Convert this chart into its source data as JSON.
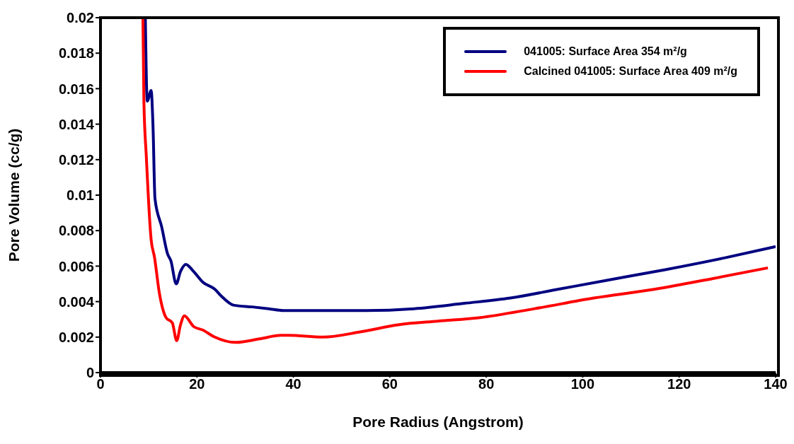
{
  "chart_data": {
    "type": "line",
    "xlabel": "Pore Radius (Angstrom)",
    "ylabel": "Pore Volume (cc/g)",
    "xlim": [
      0,
      140
    ],
    "xticks": [
      0,
      20,
      40,
      60,
      80,
      100,
      120,
      140
    ],
    "ylim": [
      0,
      0.02
    ],
    "yticks": [
      0,
      0.002,
      0.004,
      0.006,
      0.008,
      0.01,
      0.012,
      0.014,
      0.016,
      0.018,
      0.02
    ],
    "grid": false,
    "legend": "top right",
    "marker": "none",
    "line_style": "solid",
    "series": [
      {
        "name": "041005: Surface Area 354 m²/g",
        "color": "#000080",
        "x": [
          9.3,
          9.7,
          10.5,
          10.9,
          11.3,
          12.7,
          13.9,
          14.6,
          15.7,
          16.6,
          17.7,
          19.3,
          21.2,
          23.7,
          25.1,
          27.6,
          31.5,
          34.9,
          37.9,
          46,
          55.1,
          65,
          75.4,
          85,
          95,
          105,
          117.1,
          130,
          140
        ],
        "values": [
          0.02,
          0.0153,
          0.0159,
          0.0138,
          0.0098,
          0.0082,
          0.0067,
          0.0063,
          0.005,
          0.0057,
          0.0061,
          0.0057,
          0.0051,
          0.0047,
          0.0043,
          0.0038,
          0.0037,
          0.0036,
          0.0035,
          0.0035,
          0.0035,
          0.0036,
          0.0039,
          0.0042,
          0.0047,
          0.0052,
          0.0058,
          0.0065,
          0.0071
        ]
      },
      {
        "name": "Calcined 041005: Surface Area 409 m²/g",
        "color": "#ff0000",
        "x": [
          8.8,
          9.0,
          9.5,
          10.5,
          11.2,
          12.2,
          13.6,
          14.9,
          15.8,
          16.6,
          17.4,
          19.3,
          21.2,
          23.7,
          28.1,
          33,
          37.4,
          39,
          46.1,
          54,
          61.9,
          70,
          78.7,
          90,
          102.3,
          115,
          127,
          138.4
        ],
        "values": [
          0.02,
          0.0153,
          0.0122,
          0.0075,
          0.0065,
          0.0045,
          0.0031,
          0.0028,
          0.0018,
          0.0027,
          0.0032,
          0.0026,
          0.0024,
          0.002,
          0.0017,
          0.0019,
          0.0021,
          0.0021,
          0.002,
          0.0023,
          0.0027,
          0.0029,
          0.0031,
          0.0036,
          0.0042,
          0.0047,
          0.0053,
          0.0059
        ]
      }
    ]
  }
}
